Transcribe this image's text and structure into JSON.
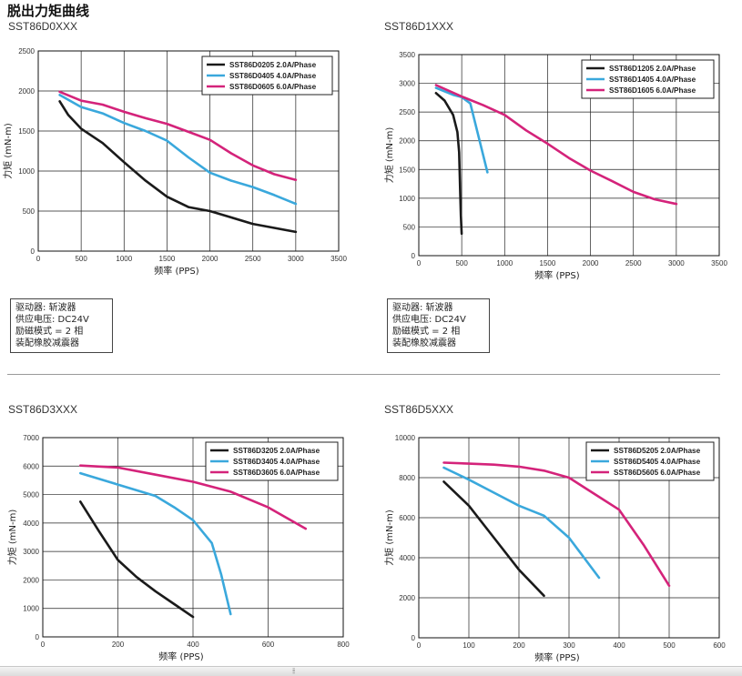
{
  "page": {
    "title": "脱出力矩曲线"
  },
  "notes": {
    "lines": [
      "驱动器: 斩波器",
      "供应电压: DC24V",
      "励磁模式 = 2 相",
      "装配橡胶减震器"
    ]
  },
  "colors": {
    "black": "#1a1a1a",
    "blue": "#3aa8dc",
    "magenta": "#d4237a"
  },
  "ui": {
    "grip_icon": "resize-grip-icon",
    "grip_glyph": "⦙⦙⦙"
  },
  "charts": [
    {
      "model": "SST86D0XXX"
    },
    {
      "model": "SST86D1XXX"
    },
    {
      "model": "SST86D3XXX"
    },
    {
      "model": "SST86D5XXX"
    }
  ],
  "chart_data": [
    {
      "type": "line",
      "title": "SST86D0XXX",
      "xlabel": "频率 (PPS)",
      "ylabel": "力矩 (mN-m)",
      "xlim": [
        0,
        3500
      ],
      "ylim": [
        0,
        2500
      ],
      "xticks": [
        "0",
        "500",
        "1000",
        "1500",
        "2000",
        "2500",
        "3000",
        "3500"
      ],
      "yticks": [
        "0",
        "500",
        "1000",
        "1500",
        "2000",
        "2500"
      ],
      "grid": true,
      "legend": "top-right",
      "series": [
        {
          "name": "SST86D0205  2.0A/Phase",
          "color": "#1a1a1a",
          "x": [
            250,
            350,
            500,
            750,
            1000,
            1250,
            1500,
            1750,
            2000,
            2250,
            2500,
            2750,
            3000
          ],
          "y": [
            1870,
            1700,
            1530,
            1350,
            1110,
            880,
            680,
            550,
            500,
            420,
            340,
            290,
            240
          ]
        },
        {
          "name": "SST86D0405  4.0A/Phase",
          "color": "#3aa8dc",
          "x": [
            250,
            500,
            750,
            1000,
            1250,
            1500,
            1750,
            2000,
            2250,
            2500,
            2750,
            3000
          ],
          "y": [
            1950,
            1800,
            1720,
            1600,
            1500,
            1380,
            1170,
            980,
            880,
            800,
            700,
            590
          ]
        },
        {
          "name": "SST86D0605  6.0A/Phase",
          "color": "#d4237a",
          "x": [
            250,
            500,
            750,
            1000,
            1250,
            1500,
            1750,
            2000,
            2250,
            2500,
            2750,
            3000
          ],
          "y": [
            1990,
            1880,
            1830,
            1740,
            1660,
            1590,
            1490,
            1390,
            1220,
            1070,
            960,
            890
          ]
        }
      ]
    },
    {
      "type": "line",
      "title": "SST86D1XXX",
      "xlabel": "频率 (PPS)",
      "ylabel": "力矩 (mN-m)",
      "xlim": [
        0,
        3500
      ],
      "ylim": [
        0,
        3500
      ],
      "xticks": [
        "0",
        "500",
        "1000",
        "1500",
        "2000",
        "2500",
        "3000",
        "3500"
      ],
      "yticks": [
        "0",
        "500",
        "1000",
        "1500",
        "2000",
        "2500",
        "3000",
        "3500"
      ],
      "grid": true,
      "legend": "top-right",
      "series": [
        {
          "name": "SST86D1205  2.0A/Phase",
          "color": "#1a1a1a",
          "x": [
            200,
            300,
            400,
            450,
            470,
            480,
            490,
            500
          ],
          "y": [
            2830,
            2700,
            2450,
            2150,
            1800,
            1200,
            700,
            380
          ]
        },
        {
          "name": "SST86D1405  4.0A/Phase",
          "color": "#3aa8dc",
          "x": [
            200,
            300,
            400,
            500,
            600,
            700,
            800
          ],
          "y": [
            2920,
            2860,
            2800,
            2760,
            2650,
            2050,
            1450
          ]
        },
        {
          "name": "SST86D1605  6.0A/Phase",
          "color": "#d4237a",
          "x": [
            200,
            500,
            750,
            1000,
            1250,
            1500,
            1750,
            2000,
            2250,
            2500,
            2750,
            3000
          ],
          "y": [
            2970,
            2770,
            2620,
            2450,
            2180,
            1950,
            1700,
            1480,
            1300,
            1110,
            980,
            900
          ]
        }
      ]
    },
    {
      "type": "line",
      "title": "SST86D3XXX",
      "xlabel": "频率 (PPS)",
      "ylabel": "力矩 (mN-m)",
      "xlim": [
        0,
        800
      ],
      "ylim": [
        0,
        7000
      ],
      "xticks": [
        "0",
        "200",
        "400",
        "600",
        "800"
      ],
      "yticks": [
        "0",
        "1000",
        "2000",
        "3000",
        "4000",
        "5000",
        "6000",
        "7000"
      ],
      "grid": true,
      "legend": "top-right",
      "series": [
        {
          "name": "SST86D3205  2.0A/Phase",
          "color": "#1a1a1a",
          "x": [
            100,
            150,
            200,
            250,
            300,
            350,
            400
          ],
          "y": [
            4750,
            3700,
            2700,
            2100,
            1600,
            1150,
            700
          ]
        },
        {
          "name": "SST86D3405  4.0A/Phase",
          "color": "#3aa8dc",
          "x": [
            100,
            200,
            300,
            350,
            400,
            450,
            475,
            500
          ],
          "y": [
            5750,
            5350,
            4950,
            4550,
            4100,
            3300,
            2200,
            800
          ]
        },
        {
          "name": "SST86D3605  6.0A/Phase",
          "color": "#d4237a",
          "x": [
            100,
            200,
            300,
            400,
            500,
            600,
            700
          ],
          "y": [
            6020,
            5950,
            5700,
            5450,
            5100,
            4550,
            3800
          ]
        }
      ]
    },
    {
      "type": "line",
      "title": "SST86D5XXX",
      "xlabel": "频率 (PPS)",
      "ylabel": "力矩 (mN-m)",
      "xlim": [
        0,
        600
      ],
      "ylim": [
        0,
        10000
      ],
      "xticks": [
        "0",
        "100",
        "200",
        "300",
        "400",
        "500",
        "600"
      ],
      "yticks": [
        "0",
        "2000",
        "4000",
        "6000",
        "8000",
        "10000"
      ],
      "grid": true,
      "legend": "top-right",
      "series": [
        {
          "name": "SST86D5205  2.0A/Phase",
          "color": "#1a1a1a",
          "x": [
            50,
            100,
            150,
            200,
            250
          ],
          "y": [
            7800,
            6600,
            5000,
            3400,
            2100
          ]
        },
        {
          "name": "SST86D5405  4.0A/Phase",
          "color": "#3aa8dc",
          "x": [
            50,
            100,
            150,
            200,
            250,
            300,
            360
          ],
          "y": [
            8500,
            7900,
            7250,
            6600,
            6100,
            5000,
            3000
          ]
        },
        {
          "name": "SST86D5605  6.0A/Phase",
          "color": "#d4237a",
          "x": [
            50,
            100,
            150,
            200,
            250,
            300,
            350,
            400,
            450,
            500
          ],
          "y": [
            8750,
            8700,
            8650,
            8550,
            8350,
            8000,
            7200,
            6400,
            4600,
            2600
          ]
        }
      ]
    }
  ]
}
